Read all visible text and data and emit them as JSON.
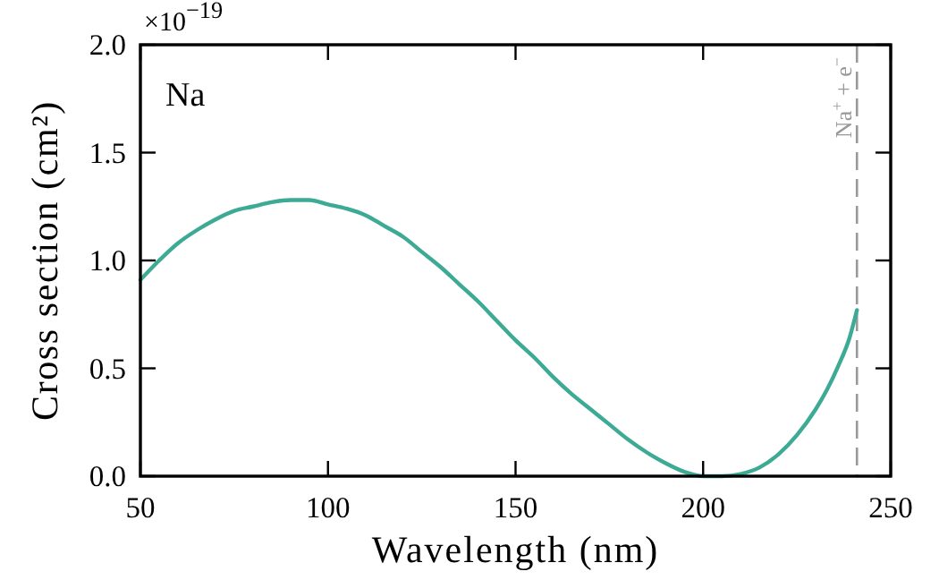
{
  "chart_data": {
    "type": "line",
    "xlabel": "Wavelength (nm)",
    "ylabel": "Cross section (cm²)",
    "annotations": [
      "×10$^{−19}$",
      "Na"
    ],
    "x": [
      50,
      55,
      60,
      65,
      70,
      75,
      80,
      85,
      90,
      95,
      100,
      105,
      110,
      115,
      120,
      125,
      130,
      135,
      140,
      145,
      150,
      155,
      160,
      165,
      170,
      175,
      180,
      185,
      190,
      195,
      200,
      205,
      210,
      215,
      220,
      225,
      230,
      233,
      236,
      239,
      241
    ],
    "series": [
      {
        "color": "#3daa95",
        "values": [
          0.91,
          1.0,
          1.08,
          1.14,
          1.19,
          1.23,
          1.25,
          1.27,
          1.28,
          1.28,
          1.26,
          1.24,
          1.21,
          1.16,
          1.11,
          1.04,
          0.97,
          0.89,
          0.81,
          0.72,
          0.63,
          0.55,
          0.46,
          0.38,
          0.31,
          0.24,
          0.17,
          0.11,
          0.06,
          0.02,
          0.0,
          0.0,
          0.01,
          0.04,
          0.1,
          0.19,
          0.31,
          0.4,
          0.51,
          0.64,
          0.77
        ]
      }
    ],
    "xlim": [
      50,
      250
    ],
    "ylim": [
      0,
      2
    ],
    "xticks": [
      50,
      100,
      150,
      200,
      250
    ],
    "yticks": [
      {
        "value": 0,
        "label": "0.0"
      },
      {
        "value": 0.5,
        "label": "0.5"
      },
      {
        "value": 1,
        "label": "1.0"
      },
      {
        "value": 1.5,
        "label": "1.5"
      },
      {
        "value": 2,
        "label": "2.0"
      }
    ],
    "ref_lines": [
      {
        "axis": "x",
        "value": 241,
        "label": "Na$^{+}$ + e$^{−}$",
        "color": "#999999",
        "line_style": "dashed"
      }
    ]
  }
}
